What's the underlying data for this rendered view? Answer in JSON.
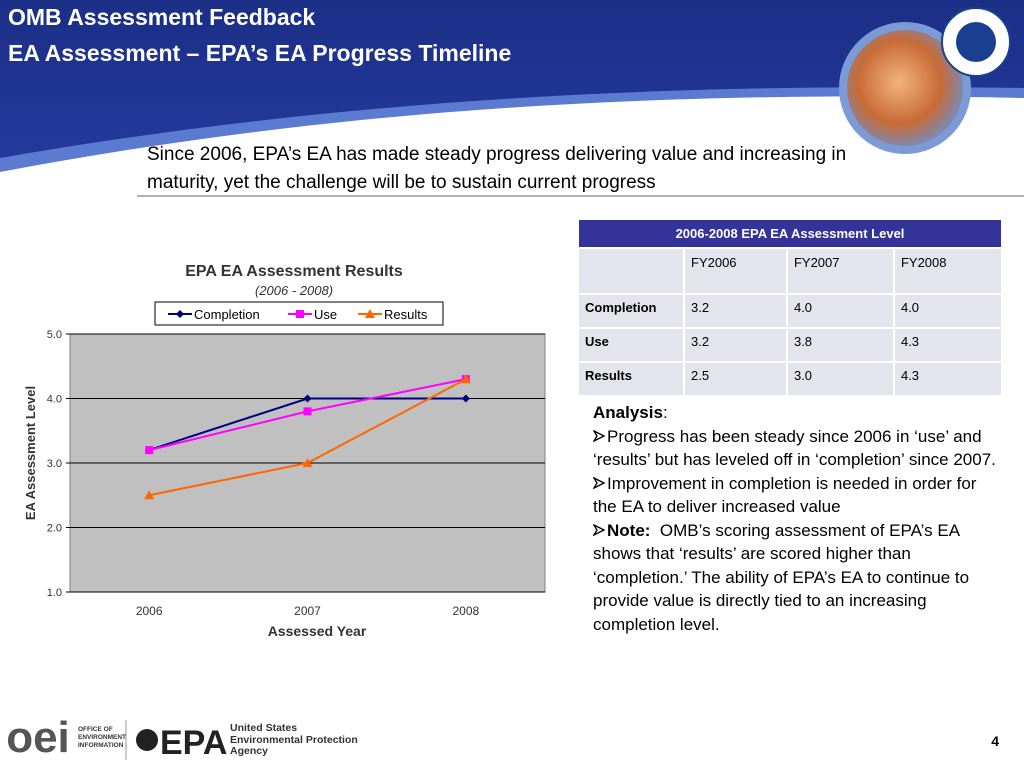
{
  "header": {
    "title_line1": "OMB Assessment Feedback",
    "title_line2": "EA Assessment – EPA’s EA Progress Timeline"
  },
  "subtitle": "Since 2006, EPA’s EA has made steady progress delivering value and increasing in maturity, yet the challenge will be to sustain current progress",
  "chart_data": {
    "type": "line",
    "title": "EPA EA Assessment Results",
    "subtitle": "(2006 - 2008)",
    "x_label": "Assessed Year",
    "y_label": "EA Assessment Level",
    "categories": [
      "2006",
      "2007",
      "2008"
    ],
    "series": [
      {
        "name": "Completion",
        "color": "#000080",
        "marker": "diamond",
        "values": [
          3.2,
          4.0,
          4.0
        ]
      },
      {
        "name": "Use",
        "color": "#ff00ff",
        "marker": "square",
        "values": [
          3.2,
          3.8,
          4.3
        ]
      },
      {
        "name": "Results",
        "color": "#ff6600",
        "marker": "triangle",
        "values": [
          2.5,
          3.0,
          4.3
        ]
      }
    ],
    "ylim": [
      1,
      5
    ],
    "yticks": [
      {
        "value": 1,
        "label": "1.0"
      },
      {
        "value": 2,
        "label": "2.0"
      },
      {
        "value": 3,
        "label": "3.0"
      },
      {
        "value": 4,
        "label": "4.0"
      },
      {
        "value": 5,
        "label": "5.0"
      }
    ],
    "grid": true,
    "legend": "top"
  },
  "table": {
    "title": "2006-2008 EPA EA Assessment Level",
    "columns": [
      "FY2006",
      "FY2007",
      "FY2008"
    ],
    "rows": [
      {
        "label": "Completion",
        "cells": [
          "3.2",
          "4.0",
          "4.0"
        ]
      },
      {
        "label": "Use",
        "cells": [
          "3.2",
          "3.8",
          "4.3"
        ]
      },
      {
        "label": "Results",
        "cells": [
          "2.5",
          "3.0",
          "4.3"
        ]
      }
    ]
  },
  "analysis": {
    "heading": "Analysis",
    "heading_suffix": ":",
    "bullets": [
      "Progress has been steady since 2006 in ‘use’ and ‘results’ but has leveled off in ‘completion’ since 2007.",
      "Improvement in completion is needed in order for the EA to deliver increased value"
    ],
    "note_label": "Note:",
    "note_text": "OMB’s scoring assessment of EPA’s EA shows that ‘results’ are scored higher than ‘completion.’ The ability of EPA’s EA to continue to provide value is directly tied to an increasing completion level."
  },
  "footer": {
    "oei_mark": "oei",
    "oei_text": "OFFICE OF ENVIRONMENTAL INFORMATION",
    "epa": "EPA",
    "agency": "United States Environmental Protection Agency",
    "page": "4"
  }
}
